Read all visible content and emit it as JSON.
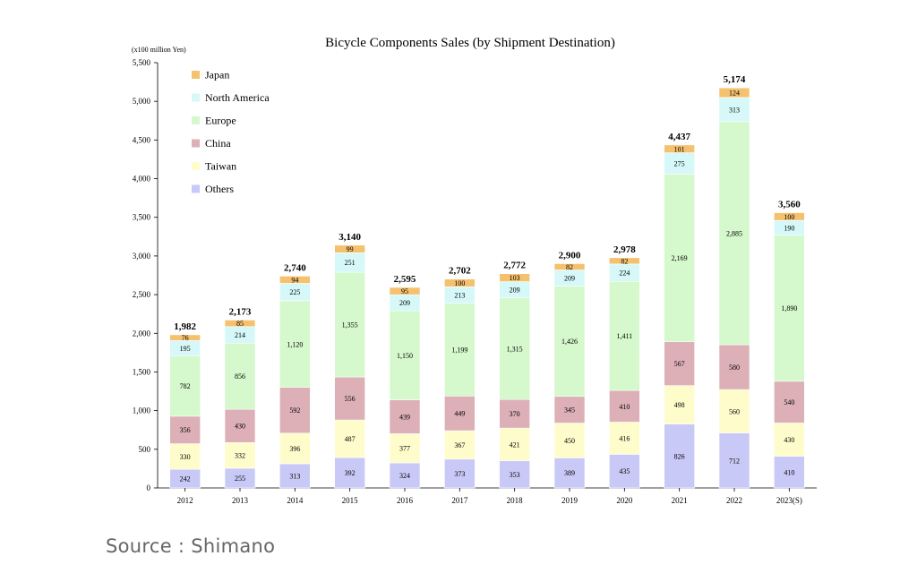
{
  "chart_data": {
    "type": "bar",
    "stacked": true,
    "title": "Bicycle Components Sales (by Shipment Destination)",
    "unit_label": "(x100 million Yen)",
    "xlabel": "",
    "ylabel": "",
    "ylim": [
      0,
      5500
    ],
    "yticks": [
      "0",
      "500",
      "1,000",
      "1,500",
      "2,000",
      "2,500",
      "3,000",
      "3,500",
      "4,000",
      "4,500",
      "5,000",
      "5,500"
    ],
    "legend_position": "top-left",
    "categories": [
      "2012",
      "2013",
      "2014",
      "2015",
      "2016",
      "2017",
      "2018",
      "2019",
      "2020",
      "2021",
      "2022",
      "2023(S)"
    ],
    "totals": [
      "1,982",
      "2,173",
      "2,740",
      "3,140",
      "2,595",
      "2,702",
      "2,772",
      "2,900",
      "2,978",
      "4,437",
      "5,174",
      "3,560"
    ],
    "series": [
      {
        "name": "Others",
        "color": "#c9c9f7",
        "values": [
          242,
          255,
          313,
          392,
          324,
          373,
          353,
          389,
          435,
          826,
          712,
          410
        ]
      },
      {
        "name": "Taiwan",
        "color": "#fffccc",
        "values": [
          330,
          332,
          396,
          487,
          377,
          367,
          421,
          450,
          416,
          498,
          560,
          430
        ]
      },
      {
        "name": "China",
        "color": "#dcb0b6",
        "values": [
          356,
          430,
          592,
          556,
          439,
          449,
          370,
          345,
          410,
          567,
          580,
          540
        ]
      },
      {
        "name": "Europe",
        "color": "#d5f8cc",
        "values": [
          782,
          856,
          1120,
          1355,
          1150,
          1199,
          1315,
          1426,
          1411,
          2169,
          2885,
          1890
        ]
      },
      {
        "name": "North America",
        "color": "#d6f8f8",
        "values": [
          195,
          214,
          225,
          251,
          209,
          213,
          209,
          209,
          224,
          275,
          313,
          190
        ]
      },
      {
        "name": "Japan",
        "color": "#f5c16e",
        "values": [
          76,
          85,
          94,
          99,
          95,
          100,
          103,
          82,
          82,
          101,
          124,
          100
        ]
      }
    ],
    "legend_order": [
      "Japan",
      "North America",
      "Europe",
      "China",
      "Taiwan",
      "Others"
    ]
  },
  "source": "Source : Shimano"
}
